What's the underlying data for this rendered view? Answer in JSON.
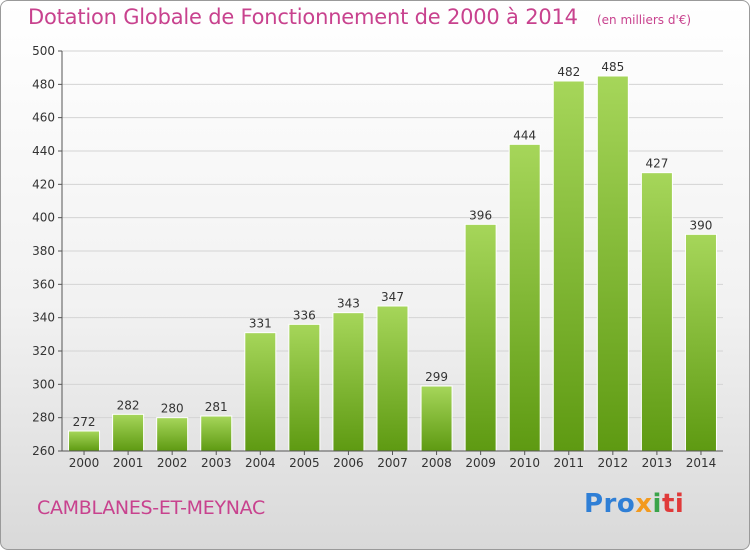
{
  "header": {
    "title": "Dotation Globale de Fonctionnement de 2000 à 2014",
    "subtitle": "(en milliers d'€)"
  },
  "footer": {
    "commune": "CAMBLANES-ET-MEYNAC",
    "logo": {
      "parts": [
        "Pro",
        "x",
        "i",
        "ti"
      ]
    }
  },
  "colors": {
    "title": "#c8428e",
    "bar_top": "#a6d65a",
    "bar_bottom": "#5e9a12",
    "grid": "#d4d4d4"
  },
  "chart_data": {
    "type": "bar",
    "title": "Dotation Globale de Fonctionnement de 2000 à 2014",
    "subtitle": "(en milliers d'€)",
    "xlabel": "",
    "ylabel": "",
    "categories": [
      "2000",
      "2001",
      "2002",
      "2003",
      "2004",
      "2005",
      "2006",
      "2007",
      "2008",
      "2009",
      "2010",
      "2011",
      "2012",
      "2013",
      "2014"
    ],
    "values": [
      272,
      282,
      280,
      281,
      331,
      336,
      343,
      347,
      299,
      396,
      444,
      482,
      485,
      427,
      390
    ],
    "ylim": [
      260,
      500
    ],
    "yticks": [
      260,
      280,
      300,
      320,
      340,
      360,
      380,
      400,
      420,
      440,
      460,
      480,
      500
    ],
    "grid": true,
    "legend": "none"
  }
}
